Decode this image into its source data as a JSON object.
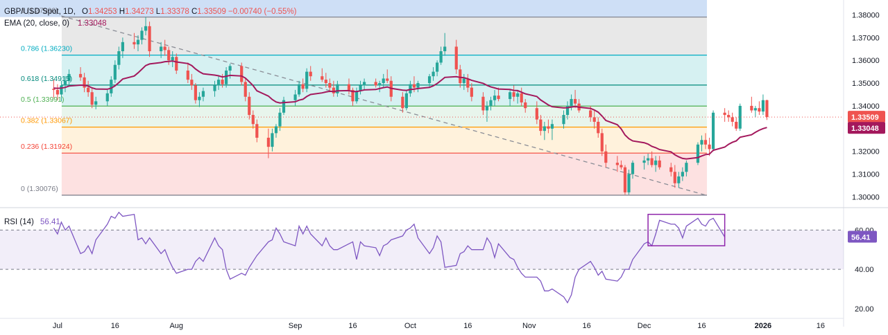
{
  "header": {
    "symbol": "GBP/USD Spot, 1D,",
    "ohlc": [
      {
        "key": "O",
        "value": "1.34253"
      },
      {
        "key": "H",
        "value": "1.34273"
      },
      {
        "key": "L",
        "value": "1.33378"
      },
      {
        "key": "C",
        "value": "1.33509"
      }
    ],
    "change": "−0.00740 (−0.55%)",
    "ema_label": "EMA (20, close, 0)",
    "ema_value": "1.33048"
  },
  "colors": {
    "up": "#26a69a",
    "down": "#ef5350",
    "ema": "#a3185c",
    "rsi": "#7e57c2",
    "fib_top_band": "#c9dcf5",
    "fib_cyan_band": "#cfeff0",
    "fib_green_band": "#e4f3e9",
    "fib_orange_band": "#fff0d6",
    "fib_red_band": "#fddcdc",
    "fib_grey_band": "#e4e4e4"
  },
  "x_axis": {
    "ticks": [
      "Jul",
      "16",
      "Aug",
      "Sep",
      "16",
      "Oct",
      "16",
      "Nov",
      "16",
      "Dec",
      "16",
      "2026",
      "16"
    ],
    "dates": [
      "2025-07-01",
      "2025-07-16",
      "2025-08-01",
      "2025-09-01",
      "2025-09-16",
      "2025-10-01",
      "2025-10-16",
      "2025-11-01",
      "2025-11-16",
      "2025-12-01",
      "2025-12-16",
      "2026-01-01",
      "2026-01-16"
    ],
    "start": "2025-06-16",
    "end": "2026-01-22"
  },
  "price_axis": {
    "ticks": [
      "1.38000",
      "1.37000",
      "1.36000",
      "1.35000",
      "1.34000",
      "1.32000",
      "1.31000",
      "1.30000"
    ],
    "tick_values": [
      1.38,
      1.37,
      1.36,
      1.35,
      1.34,
      1.32,
      1.31,
      1.3
    ],
    "ylim": [
      1.2965,
      1.3865
    ],
    "last_price": "1.33509",
    "ema_badge": "1.33048"
  },
  "fib": {
    "start_date": "2025-07-01",
    "end_date": "2025-12-17",
    "levels": [
      {
        "ratio": "1",
        "label": "1 (1.37900)",
        "value": 1.379
      },
      {
        "ratio": "0.786",
        "label": "0.786 (1.36230)",
        "value": 1.3623
      },
      {
        "ratio": "0.618",
        "label": "0.618 (1.34915)",
        "value": 1.34915
      },
      {
        "ratio": "0.5",
        "label": "0.5 (1.33991)",
        "value": 1.33991
      },
      {
        "ratio": "0.382",
        "label": "0.382 (1.33067)",
        "value": 1.33067
      },
      {
        "ratio": "0.236",
        "label": "0.236 (1.31924)",
        "value": 1.31924
      },
      {
        "ratio": "0",
        "label": "0 (1.30076)",
        "value": 1.30076
      }
    ]
  },
  "trendline": {
    "from": {
      "date": "2025-07-02",
      "value": 1.3795
    },
    "to": {
      "date": "2025-12-17",
      "value": 1.3008
    }
  },
  "rsi": {
    "label": "RSI (14)",
    "value": "56.41",
    "ticks": [
      "60.00",
      "40.00",
      "20.00"
    ],
    "tick_values": [
      60,
      40,
      20
    ],
    "upper": 60,
    "lower": 40,
    "ylim": [
      15,
      70
    ],
    "highlight": {
      "from": "2025-12-02",
      "to": "2025-12-22",
      "low": 52,
      "high": 68
    },
    "values": [
      61,
      58,
      64,
      60,
      62,
      48,
      49,
      52,
      48,
      55,
      63,
      67,
      66,
      69,
      67,
      68,
      55,
      56,
      53,
      56,
      48,
      50,
      45,
      41,
      38,
      40,
      40,
      44,
      46,
      44,
      56,
      52,
      50,
      40,
      35,
      38,
      37,
      41,
      44,
      47,
      54,
      55,
      61,
      58,
      54,
      52,
      62,
      58,
      62,
      58,
      52,
      56,
      52,
      50,
      50,
      53,
      54,
      45,
      54,
      52,
      51,
      47,
      52,
      53,
      55,
      57,
      60,
      61,
      63,
      56,
      48,
      51,
      57,
      54,
      41,
      42,
      48,
      49,
      52,
      50,
      50,
      56,
      53,
      46,
      53,
      46,
      45,
      41,
      38,
      36,
      36,
      34,
      29,
      29,
      30,
      26,
      23,
      27,
      36,
      40,
      44,
      41,
      37,
      39,
      35,
      34,
      36,
      40,
      40,
      45,
      53,
      54,
      52,
      58,
      65,
      63,
      63,
      61,
      56,
      62,
      66,
      63,
      62,
      65,
      66,
      56.41
    ]
  },
  "chart_data": {
    "type": "candlestick",
    "title": "GBP/USD Spot, 1D",
    "x_unit": "trading day",
    "start_date": "2025-06-30",
    "end_date": "2025-12-17",
    "columns": [
      "open",
      "high",
      "low",
      "close"
    ],
    "candles": [
      [
        1.3475,
        1.3515,
        1.3435,
        1.347
      ],
      [
        1.347,
        1.3495,
        1.3425,
        1.345
      ],
      [
        1.345,
        1.351,
        1.342,
        1.349
      ],
      [
        1.349,
        1.353,
        1.346,
        1.351
      ],
      [
        1.351,
        1.356,
        1.349,
        1.354
      ],
      [
        1.354,
        1.357,
        1.351,
        1.3525
      ],
      [
        1.3525,
        1.3545,
        1.346,
        1.348
      ],
      [
        1.348,
        1.351,
        1.344,
        1.346
      ],
      [
        1.346,
        1.348,
        1.339,
        1.3405
      ],
      [
        1.3405,
        1.344,
        1.3385,
        1.342
      ],
      [
        1.342,
        1.347,
        1.34,
        1.3455
      ],
      [
        1.3455,
        1.353,
        1.344,
        1.3515
      ],
      [
        1.3515,
        1.36,
        1.35,
        1.358
      ],
      [
        1.358,
        1.366,
        1.356,
        1.364
      ],
      [
        1.364,
        1.37,
        1.361,
        1.368
      ],
      [
        1.368,
        1.372,
        1.365,
        1.367
      ],
      [
        1.367,
        1.371,
        1.364,
        1.369
      ],
      [
        1.369,
        1.3745,
        1.367,
        1.373
      ],
      [
        1.373,
        1.379,
        1.371,
        1.375
      ],
      [
        1.375,
        1.377,
        1.3615,
        1.364
      ],
      [
        1.364,
        1.368,
        1.361,
        1.366
      ],
      [
        1.366,
        1.369,
        1.362,
        1.3645
      ],
      [
        1.3645,
        1.366,
        1.358,
        1.36
      ],
      [
        1.36,
        1.364,
        1.357,
        1.3615
      ],
      [
        1.3615,
        1.363,
        1.354,
        1.3555
      ],
      [
        1.3555,
        1.359,
        1.35,
        1.3515
      ],
      [
        1.3515,
        1.354,
        1.347,
        1.349
      ],
      [
        1.349,
        1.35,
        1.341,
        1.3425
      ],
      [
        1.3425,
        1.346,
        1.3395,
        1.344
      ],
      [
        1.344,
        1.348,
        1.342,
        1.3465
      ],
      [
        1.3465,
        1.351,
        1.344,
        1.349
      ],
      [
        1.349,
        1.353,
        1.347,
        1.3515
      ],
      [
        1.3515,
        1.354,
        1.348,
        1.3495
      ],
      [
        1.3495,
        1.357,
        1.348,
        1.3555
      ],
      [
        1.3555,
        1.3585,
        1.352,
        1.3575
      ],
      [
        1.3575,
        1.359,
        1.349,
        1.3505
      ],
      [
        1.3505,
        1.352,
        1.342,
        1.344
      ],
      [
        1.344,
        1.346,
        1.334,
        1.336
      ],
      [
        1.336,
        1.338,
        1.33,
        1.332
      ],
      [
        1.332,
        1.334,
        1.324,
        1.326
      ],
      [
        1.326,
        1.33,
        1.317,
        1.322
      ],
      [
        1.322,
        1.33,
        1.32,
        1.328
      ],
      [
        1.328,
        1.332,
        1.326,
        1.331
      ],
      [
        1.331,
        1.339,
        1.329,
        1.337
      ],
      [
        1.337,
        1.344,
        1.336,
        1.3425
      ],
      [
        1.3425,
        1.347,
        1.34,
        1.345
      ],
      [
        1.345,
        1.351,
        1.344,
        1.3495
      ],
      [
        1.3495,
        1.352,
        1.346,
        1.3475
      ],
      [
        1.3475,
        1.3565,
        1.346,
        1.355
      ],
      [
        1.355,
        1.3575,
        1.351,
        1.353
      ],
      [
        1.353,
        1.3565,
        1.3505,
        1.3515
      ],
      [
        1.3515,
        1.3545,
        1.348,
        1.35
      ],
      [
        1.35,
        1.352,
        1.346,
        1.348
      ],
      [
        1.348,
        1.351,
        1.344,
        1.3455
      ],
      [
        1.3455,
        1.351,
        1.344,
        1.3495
      ],
      [
        1.3495,
        1.352,
        1.345,
        1.347
      ],
      [
        1.347,
        1.348,
        1.34,
        1.342
      ],
      [
        1.342,
        1.348,
        1.341,
        1.3465
      ],
      [
        1.3465,
        1.351,
        1.345,
        1.349
      ],
      [
        1.349,
        1.352,
        1.347,
        1.3505
      ],
      [
        1.3505,
        1.352,
        1.348,
        1.349
      ],
      [
        1.349,
        1.351,
        1.346,
        1.35
      ],
      [
        1.35,
        1.354,
        1.348,
        1.352
      ],
      [
        1.352,
        1.356,
        1.35,
        1.351
      ],
      [
        1.351,
        1.353,
        1.342,
        1.344
      ],
      [
        1.344,
        1.346,
        1.337,
        1.339
      ],
      [
        1.339,
        1.347,
        1.338,
        1.3455
      ],
      [
        1.3455,
        1.351,
        1.344,
        1.3495
      ],
      [
        1.3495,
        1.353,
        1.346,
        1.348
      ],
      [
        1.348,
        1.351,
        1.346,
        1.35
      ],
      [
        1.35,
        1.354,
        1.348,
        1.353
      ],
      [
        1.353,
        1.357,
        1.351,
        1.355
      ],
      [
        1.355,
        1.36,
        1.353,
        1.359
      ],
      [
        1.359,
        1.366,
        1.358,
        1.364
      ],
      [
        1.364,
        1.372,
        1.362,
        1.366
      ],
      [
        1.366,
        1.369,
        1.354,
        1.356
      ],
      [
        1.356,
        1.358,
        1.348,
        1.35
      ],
      [
        1.35,
        1.354,
        1.347,
        1.352
      ],
      [
        1.352,
        1.354,
        1.346,
        1.348
      ],
      [
        1.348,
        1.35,
        1.342,
        1.344
      ],
      [
        1.344,
        1.346,
        1.336,
        1.338
      ],
      [
        1.338,
        1.342,
        1.333,
        1.34
      ],
      [
        1.34,
        1.344,
        1.338,
        1.3425
      ],
      [
        1.3425,
        1.347,
        1.34,
        1.3445
      ],
      [
        1.3445,
        1.348,
        1.342,
        1.343
      ],
      [
        1.343,
        1.347,
        1.34,
        1.346
      ],
      [
        1.346,
        1.349,
        1.342,
        1.344
      ],
      [
        1.344,
        1.347,
        1.341,
        1.3455
      ],
      [
        1.3455,
        1.348,
        1.34,
        1.3415
      ],
      [
        1.3415,
        1.343,
        1.337,
        1.339
      ],
      [
        1.339,
        1.342,
        1.332,
        1.334
      ],
      [
        1.334,
        1.336,
        1.327,
        1.329
      ],
      [
        1.329,
        1.333,
        1.325,
        1.331
      ],
      [
        1.331,
        1.334,
        1.328,
        1.33
      ],
      [
        1.33,
        1.334,
        1.325,
        1.332
      ],
      [
        1.332,
        1.338,
        1.33,
        1.336
      ],
      [
        1.336,
        1.342,
        1.334,
        1.34
      ],
      [
        1.34,
        1.345,
        1.338,
        1.343
      ],
      [
        1.343,
        1.347,
        1.339,
        1.341
      ],
      [
        1.341,
        1.343,
        1.337,
        1.338
      ],
      [
        1.338,
        1.34,
        1.333,
        1.335
      ],
      [
        1.335,
        1.338,
        1.33,
        1.333
      ],
      [
        1.333,
        1.335,
        1.326,
        1.328
      ],
      [
        1.328,
        1.33,
        1.318,
        1.32
      ],
      [
        1.32,
        1.323,
        1.313,
        1.315
      ],
      [
        1.315,
        1.318,
        1.311,
        1.314
      ],
      [
        1.314,
        1.316,
        1.312,
        1.313
      ],
      [
        1.313,
        1.314,
        1.301,
        1.302
      ],
      [
        1.302,
        1.312,
        1.301,
        1.31
      ],
      [
        1.31,
        1.316,
        1.308,
        1.315
      ],
      [
        1.315,
        1.318,
        1.312,
        1.316
      ],
      [
        1.316,
        1.319,
        1.314,
        1.317
      ],
      [
        1.317,
        1.32,
        1.313,
        1.314
      ],
      [
        1.314,
        1.318,
        1.311,
        1.316
      ],
      [
        1.316,
        1.318,
        1.312,
        1.313
      ],
      [
        1.313,
        1.315,
        1.309,
        1.311
      ],
      [
        1.311,
        1.314,
        1.304,
        1.306
      ],
      [
        1.306,
        1.311,
        1.304,
        1.309
      ],
      [
        1.309,
        1.313,
        1.307,
        1.311
      ],
      [
        1.311,
        1.316,
        1.309,
        1.315
      ],
      [
        1.315,
        1.324,
        1.314,
        1.323
      ],
      [
        1.323,
        1.327,
        1.32,
        1.325
      ],
      [
        1.325,
        1.328,
        1.321,
        1.323
      ],
      [
        1.323,
        1.326,
        1.318,
        1.321
      ],
      [
        1.321,
        1.338,
        1.32,
        1.337
      ],
      [
        1.337,
        1.339,
        1.333,
        1.336
      ],
      [
        1.336,
        1.338,
        1.333,
        1.335
      ],
      [
        1.335,
        1.337,
        1.331,
        1.333
      ],
      [
        1.333,
        1.335,
        1.329,
        1.33
      ],
      [
        1.33,
        1.341,
        1.329,
        1.34
      ],
      [
        1.34,
        1.344,
        1.337,
        1.338
      ],
      [
        1.338,
        1.34,
        1.335,
        1.339
      ],
      [
        1.339,
        1.342,
        1.336,
        1.3375
      ],
      [
        1.3375,
        1.345,
        1.336,
        1.3425
      ],
      [
        1.3425,
        1.3427,
        1.3338,
        1.3351
      ]
    ],
    "ema20": [
      1.3478,
      1.3477,
      1.3478,
      1.3481,
      1.3487,
      1.3491,
      1.349,
      1.3487,
      1.3479,
      1.3474,
      1.3473,
      1.3478,
      1.3488,
      1.3502,
      1.3518,
      1.3531,
      1.3545,
      1.3561,
      1.3577,
      1.3584,
      1.359,
      1.3594,
      1.3595,
      1.3597,
      1.3593,
      1.3586,
      1.3577,
      1.3562,
      1.355,
      1.3541,
      1.3535,
      1.3532,
      1.3527,
      1.353,
      1.3534,
      1.3531,
      1.3522,
      1.3506,
      1.3489,
      1.3466,
      1.3443,
      1.3428,
      1.3417,
      1.3413,
      1.3414,
      1.3418,
      1.3425,
      1.3429,
      1.3441,
      1.345,
      1.3457,
      1.3461,
      1.3464,
      1.3463,
      1.3466,
      1.3467,
      1.3463,
      1.3463,
      1.3466,
      1.347,
      1.3472,
      1.3476,
      1.348,
      1.3483,
      1.3477,
      1.3469,
      1.3468,
      1.3472,
      1.3473,
      1.3476,
      1.3481,
      1.3488,
      1.3498,
      1.3511,
      1.3525,
      1.3528,
      1.3525,
      1.3524,
      1.3519,
      1.3512,
      1.3499,
      1.349,
      1.3483,
      1.3479,
      1.3474,
      1.3472,
      1.3468,
      1.3467,
      1.346,
      1.3453,
      1.3441,
      1.3426,
      1.3415,
      1.3404,
      1.3396,
      1.3391,
      1.3392,
      1.3395,
      1.3397,
      1.3394,
      1.3389,
      1.3382,
      1.3372,
      1.3355,
      1.3336,
      1.3317,
      1.3299,
      1.3272,
      1.3256,
      1.3246,
      1.3238,
      1.3232,
      1.3222,
      1.3216,
      1.3208,
      1.3198,
      1.3185,
      1.3176,
      1.3169,
      1.3167,
      1.3173,
      1.318,
      1.3186,
      1.3188,
      1.3205,
      1.3219,
      1.3231,
      1.324,
      1.3246,
      1.3262,
      1.3273,
      1.3284,
      1.3293,
      1.33,
      1.3305
    ]
  }
}
